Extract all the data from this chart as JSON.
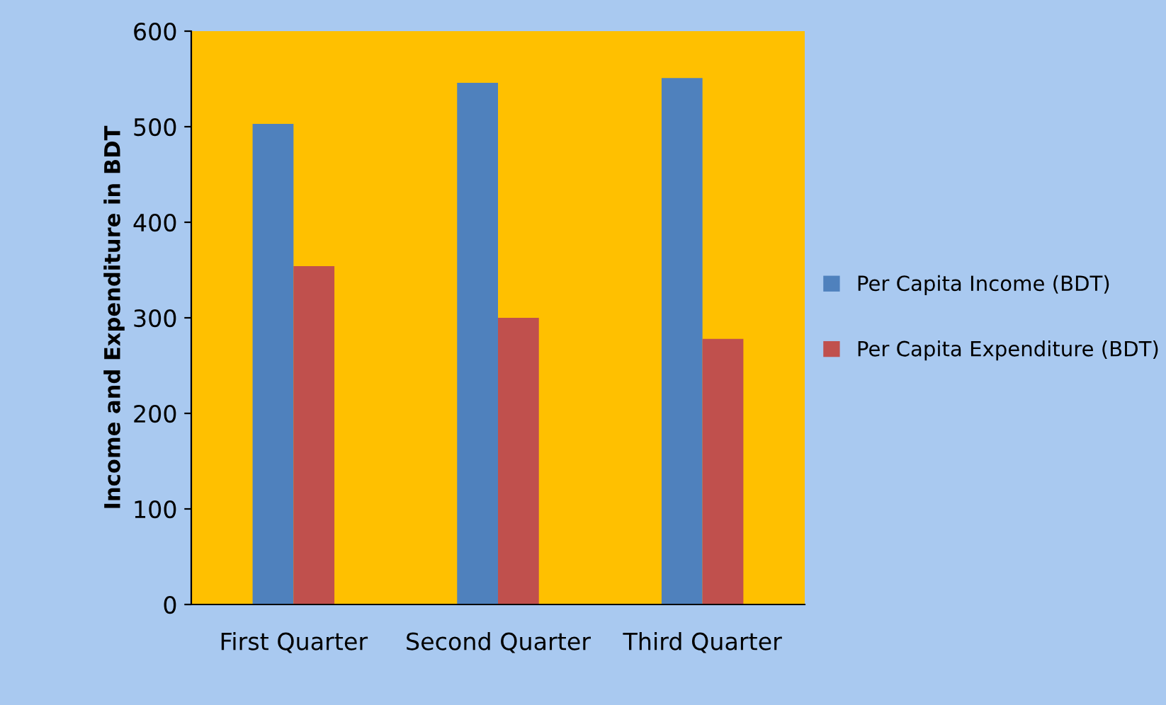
{
  "chart_data": {
    "type": "bar",
    "ylabel": "Income and Expenditure in BDT",
    "categories": [
      "First Quarter",
      "Second Quarter",
      "Third Quarter"
    ],
    "series": [
      {
        "name": "Per Capita Income (BDT)",
        "color": "#4f81bd",
        "values": [
          503,
          546,
          551
        ]
      },
      {
        "name": "Per Capita Expenditure (BDT)",
        "color": "#c0504d",
        "values": [
          354,
          300,
          278
        ]
      }
    ],
    "ylim": [
      0,
      600
    ],
    "yticks": [
      0,
      100,
      200,
      300,
      400,
      500,
      600
    ],
    "grid": false,
    "legend": "right"
  }
}
